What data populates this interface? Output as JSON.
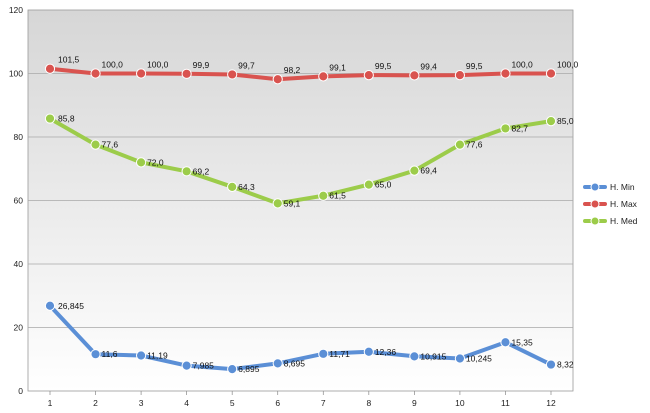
{
  "chart_data": {
    "type": "line",
    "title": "",
    "xlabel": "",
    "ylabel": "",
    "x": [
      1,
      2,
      3,
      4,
      5,
      6,
      7,
      8,
      9,
      10,
      11,
      12
    ],
    "x_tick_labels": [
      "1",
      "2",
      "3",
      "4",
      "5",
      "6",
      "7",
      "8",
      "9",
      "10",
      "11",
      "12"
    ],
    "ylim": [
      0,
      120
    ],
    "y_ticks": [
      0,
      20,
      40,
      60,
      80,
      100,
      120
    ],
    "y_tick_labels": [
      "0",
      "20",
      "40",
      "60",
      "80",
      "100",
      "120"
    ],
    "grid": "horizontal",
    "legend_position": "right",
    "series": [
      {
        "name": "H. Min",
        "color": "#5b8fd6",
        "values": [
          26.845,
          11.6,
          11.19,
          7.985,
          6.895,
          8.695,
          11.71,
          12.36,
          10.915,
          10.245,
          15.35,
          8.32
        ],
        "labels": [
          "26,845",
          "11,6",
          "11,19",
          "7,985",
          "6,895",
          "8,695",
          "11,71",
          "12,36",
          "10,915",
          "10,245",
          "15,35",
          "8,32"
        ]
      },
      {
        "name": "H. Max",
        "color": "#d9534f",
        "values": [
          101.5,
          100.0,
          100.0,
          99.9,
          99.7,
          98.2,
          99.1,
          99.5,
          99.4,
          99.5,
          100.0,
          100.0
        ],
        "labels": [
          "101,5",
          "100,0",
          "100,0",
          "99,9",
          "99,7",
          "98,2",
          "99,1",
          "99,5",
          "99,4",
          "99,5",
          "100,0",
          "100,0"
        ]
      },
      {
        "name": "H. Med",
        "color": "#9ccc4a",
        "values": [
          85.8,
          77.6,
          72.0,
          69.2,
          64.3,
          59.1,
          61.5,
          65.0,
          69.4,
          77.6,
          82.7,
          85.0
        ],
        "labels": [
          "85,8",
          "77,6",
          "72,0",
          "69,2",
          "64,3",
          "59,1",
          "61,5",
          "65,0",
          "69,4",
          "77,6",
          "82,7",
          "85,0"
        ]
      }
    ]
  }
}
